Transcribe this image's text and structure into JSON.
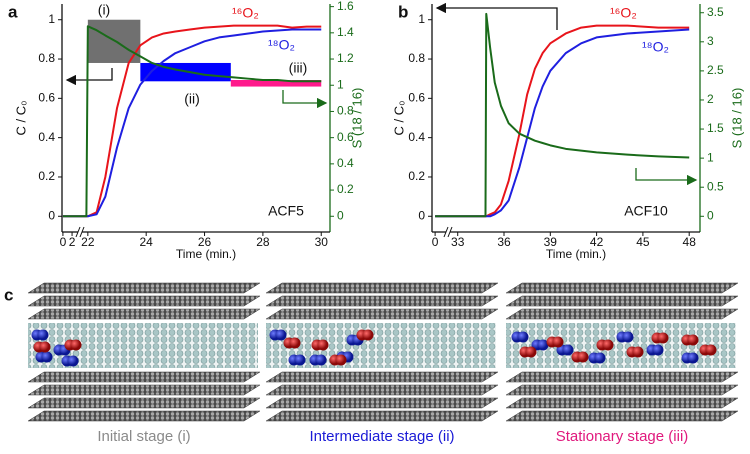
{
  "panel_labels": [
    "a",
    "b",
    "c"
  ],
  "chart_data": [
    {
      "type": "line",
      "x_label": "Time (min.)",
      "y_label": "C / C₀",
      "y2_label": "S (18 / 16)",
      "annotation": "ACF5",
      "xsegments": [
        {
          "xlim": [
            -0.2,
            3.3
          ]
        },
        {
          "xlim": [
            21.8,
            30.3
          ]
        }
      ],
      "xticks": [
        0,
        2,
        22,
        24,
        26,
        28,
        30
      ],
      "ylim": [
        -0.08,
        1.08
      ],
      "yticks": [
        0,
        0.2,
        0.4,
        0.6,
        0.8,
        1
      ],
      "y2lim": [
        -0.12,
        1.62
      ],
      "y2ticks": [
        0,
        0.2,
        0.4,
        0.6,
        0.8,
        1,
        1.2,
        1.4,
        1.6
      ],
      "x": [
        0,
        3,
        21.95,
        22,
        22.3,
        22.6,
        23,
        23.4,
        23.8,
        24.2,
        24.6,
        25,
        25.5,
        26,
        26.5,
        27,
        27.5,
        28,
        28.5,
        29,
        29.5,
        30
      ],
      "series": [
        {
          "name": "¹⁶O₂",
          "color": "#e8141b",
          "values": [
            0,
            0,
            0,
            0,
            0.02,
            0.2,
            0.55,
            0.78,
            0.87,
            0.91,
            0.93,
            0.94,
            0.95,
            0.96,
            0.965,
            0.97,
            0.97,
            0.97,
            0.97,
            0.96,
            0.965,
            0.965
          ]
        },
        {
          "name": "¹⁸O₂",
          "color": "#1f1fe0",
          "values": [
            0,
            0,
            0,
            0,
            0.01,
            0.1,
            0.35,
            0.55,
            0.67,
            0.74,
            0.79,
            0.83,
            0.86,
            0.89,
            0.91,
            0.92,
            0.93,
            0.94,
            0.945,
            0.95,
            0.95,
            0.95
          ]
        },
        {
          "color": "#1a6b1a",
          "axis": "y2",
          "values": [
            0,
            0,
            0,
            1.45,
            1.42,
            1.38,
            1.33,
            1.27,
            1.22,
            1.17,
            1.14,
            1.12,
            1.1,
            1.08,
            1.07,
            1.06,
            1.05,
            1.04,
            1.04,
            1.03,
            1.03,
            1.03
          ]
        }
      ],
      "regions": [
        {
          "label": "(i)",
          "color": "#707070",
          "x": [
            22,
            23.8
          ],
          "y2": [
            1.17,
            1.5
          ]
        },
        {
          "label": "(ii)",
          "color": "#0000ff",
          "x": [
            23.8,
            26.9
          ],
          "y2": [
            1.03,
            1.17
          ]
        },
        {
          "label": "(iii)",
          "color": "#ff1a8c",
          "x": [
            26.9,
            30
          ],
          "y2": [
            0.99,
            1.04
          ]
        }
      ]
    },
    {
      "type": "line",
      "x_label": "Time (min.)",
      "y_label": "C / C₀",
      "y2_label": "S (18 / 16)",
      "annotation": "ACF10",
      "xsegments": [
        {
          "xlim": [
            -0.4,
            1.4
          ]
        },
        {
          "xlim": [
            32.5,
            48.7
          ]
        }
      ],
      "xticks": [
        0,
        33,
        36,
        39,
        42,
        45,
        48
      ],
      "ylim": [
        -0.08,
        1.08
      ],
      "yticks": [
        0,
        0.2,
        0.4,
        0.6,
        0.8,
        1
      ],
      "y2lim": [
        -0.27,
        3.65
      ],
      "y2ticks": [
        0,
        0.5,
        1,
        1.5,
        2,
        2.5,
        3,
        3.5
      ],
      "x": [
        0,
        1,
        33,
        34.8,
        34.85,
        35.1,
        35.4,
        35.8,
        36.3,
        37,
        37.5,
        38,
        38.5,
        39,
        40,
        41,
        42,
        44,
        46,
        48
      ],
      "series": [
        {
          "name": "¹⁶O₂",
          "color": "#e8141b",
          "values": [
            0,
            0,
            0,
            0,
            0,
            0.01,
            0.02,
            0.06,
            0.18,
            0.42,
            0.62,
            0.75,
            0.83,
            0.88,
            0.93,
            0.96,
            0.97,
            0.97,
            0.96,
            0.96
          ]
        },
        {
          "name": "¹⁸O₂",
          "color": "#1f1fe0",
          "values": [
            0,
            0,
            0,
            0,
            0,
            0,
            0.01,
            0.03,
            0.08,
            0.25,
            0.4,
            0.55,
            0.66,
            0.74,
            0.83,
            0.88,
            0.91,
            0.93,
            0.94,
            0.95
          ]
        },
        {
          "color": "#1a6b1a",
          "axis": "y2",
          "values": [
            0,
            0,
            0,
            0,
            3.48,
            2.9,
            2.3,
            1.9,
            1.6,
            1.42,
            1.36,
            1.3,
            1.26,
            1.22,
            1.16,
            1.13,
            1.1,
            1.06,
            1.03,
            1.01
          ]
        }
      ]
    }
  ],
  "illustration": {
    "captions": [
      {
        "text": "Initial stage (i)",
        "color": "#8a8a8a"
      },
      {
        "text": "Intermediate stage (ii)",
        "color": "#1a1ad6"
      },
      {
        "text": "Stationary stage (iii)",
        "color": "#e0197d"
      }
    ]
  }
}
